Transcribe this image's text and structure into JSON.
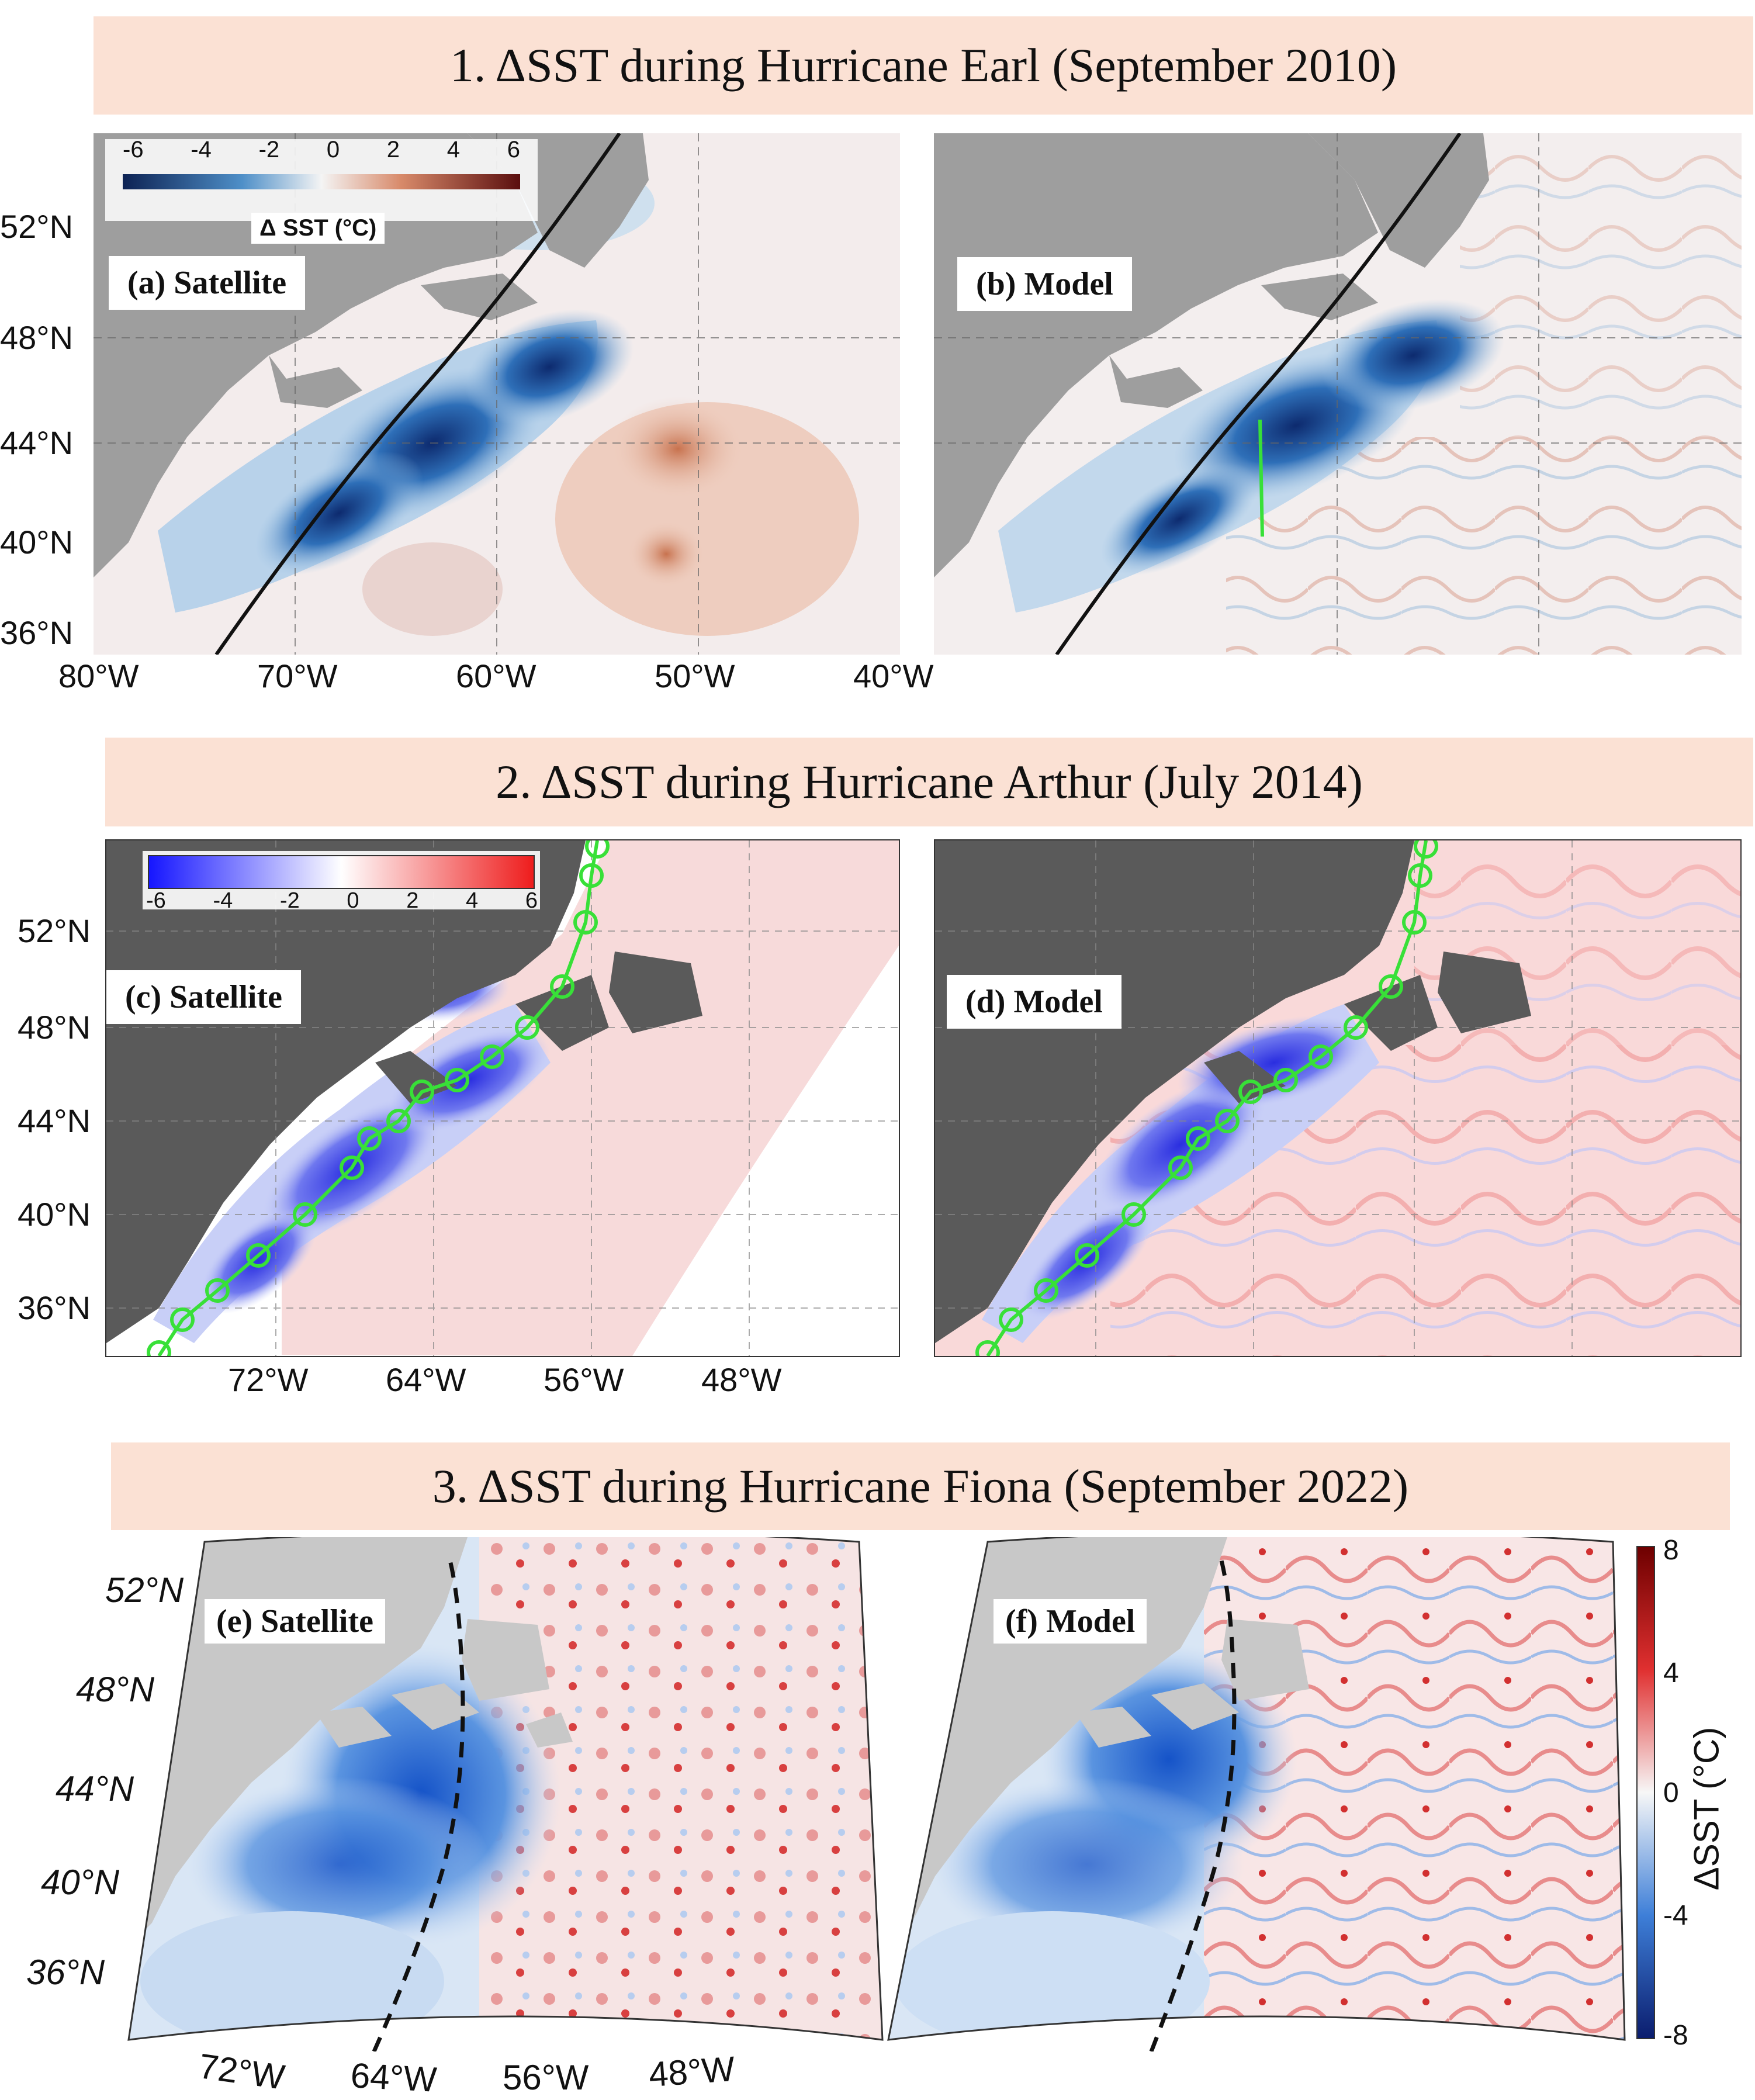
{
  "rows": [
    {
      "title": "1. ΔSST during Hurricane Earl (September 2010)",
      "labels": [
        "(a) Satellite",
        "(b) Model"
      ],
      "lat_ticks": [
        "52°N",
        "48°N",
        "44°N",
        "40°N",
        "36°N"
      ],
      "lon_ticks": [
        "80°W",
        "70°W",
        "60°W",
        "50°W",
        "40°W"
      ],
      "colorbar": {
        "ticks": [
          "-6",
          "-4",
          "-2",
          "0",
          "2",
          "4",
          "6"
        ],
        "label": "Δ SST (°C)"
      }
    },
    {
      "title": "2. ΔSST during Hurricane Arthur (July 2014)",
      "labels": [
        "(c) Satellite",
        "(d) Model"
      ],
      "lat_ticks": [
        "52°N",
        "48°N",
        "44°N",
        "40°N",
        "36°N"
      ],
      "lon_ticks": [
        "72°W",
        "64°W",
        "56°W",
        "48°W"
      ],
      "colorbar": {
        "ticks": [
          "-6",
          "-4",
          "-2",
          "0",
          "2",
          "4",
          "6"
        ]
      }
    },
    {
      "title": "3. ΔSST during Hurricane Fiona (September 2022)",
      "labels": [
        "(e) Satellite",
        "(f) Model"
      ],
      "lat_ticks": [
        "52°N",
        "48°N",
        "44°N",
        "40°N",
        "36°N"
      ],
      "lon_ticks": [
        "72°W",
        "64°W",
        "56°W",
        "48°W"
      ],
      "colorbar": {
        "ticks": [
          "8",
          "4",
          "0",
          "-4",
          "-8"
        ],
        "label": "ΔSST (°C)"
      }
    }
  ],
  "colors": {
    "banner": "#fbe1d4",
    "land": "#9e9e9e",
    "land_dark": "#5a5a5a",
    "cold": "#1f4fa8",
    "warm": "#c0392b",
    "track_green": "#38e038",
    "track_black": "#111111"
  }
}
